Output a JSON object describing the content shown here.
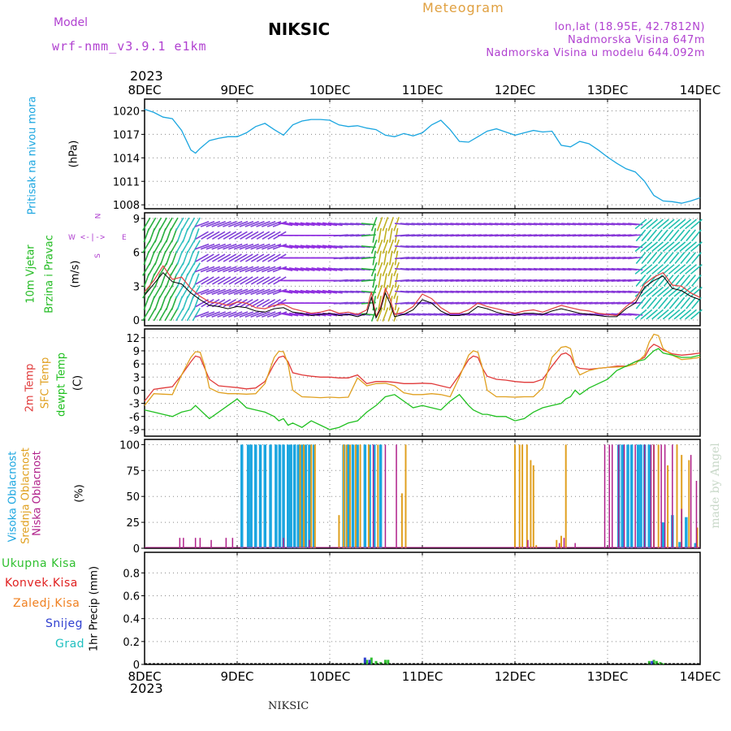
{
  "header": {
    "model_label": "Model",
    "model_name": "wrf-nmm_v3.9.1 e1km",
    "station": "NIKSIC",
    "title": "Meteogram",
    "lonlat": "lon,lat (18.95E, 42.7812N)",
    "elevation": "Nadmorska Visina 647m",
    "model_elevation": "Nadmorska Visina u modelu 644.092m",
    "year_top": "2023",
    "year_bottom": "2023",
    "footer_station": "NIKSIC",
    "watermark": "made by Angel"
  },
  "colors": {
    "pressure": "#1ba6e0",
    "wind_label": "#22bb22",
    "temp2m": "#e03a3a",
    "sfc": "#e0a020",
    "dewpt": "#20c020",
    "high_cloud": "#1ba6e0",
    "mid_cloud": "#e0a020",
    "low_cloud": "#b0208a",
    "total_precip": "#30c030",
    "convective": "#e02020",
    "frozen": "#f08020",
    "snow": "#3040d0",
    "graupel": "#20c0c0",
    "purple_text": "#b040d0",
    "orange_text": "#e0a040"
  },
  "chart_data": [
    {
      "type": "line",
      "panel": "pressure",
      "ylabel_lines": [
        "Pritisak na nivou mora",
        "(hPa)"
      ],
      "yticks": [
        1008,
        1011,
        1014,
        1017,
        1020
      ],
      "ylim": [
        1007.5,
        1021.5
      ],
      "xticks": [
        "8DEC",
        "9DEC",
        "10DEC",
        "11DEC",
        "12DEC",
        "13DEC",
        "14DEC"
      ],
      "xlim": [
        0,
        6
      ],
      "x": [
        0,
        0.1,
        0.2,
        0.3,
        0.4,
        0.5,
        0.55,
        0.6,
        0.7,
        0.8,
        0.9,
        1.0,
        1.1,
        1.2,
        1.3,
        1.4,
        1.5,
        1.6,
        1.7,
        1.8,
        1.9,
        2.0,
        2.1,
        2.2,
        2.3,
        2.4,
        2.5,
        2.6,
        2.7,
        2.8,
        2.9,
        3.0,
        3.1,
        3.2,
        3.3,
        3.4,
        3.5,
        3.6,
        3.7,
        3.8,
        3.9,
        4.0,
        4.1,
        4.2,
        4.3,
        4.4,
        4.5,
        4.6,
        4.7,
        4.8,
        4.9,
        5.0,
        5.1,
        5.2,
        5.3,
        5.4,
        5.5,
        5.6,
        5.7,
        5.8,
        5.9,
        6.0
      ],
      "series": [
        {
          "values": [
            1020.2,
            1019.8,
            1019.2,
            1019.0,
            1017.5,
            1015.0,
            1014.6,
            1015.2,
            1016.2,
            1016.5,
            1016.7,
            1016.7,
            1017.2,
            1018.0,
            1018.4,
            1017.6,
            1016.9,
            1018.2,
            1018.7,
            1018.9,
            1018.9,
            1018.8,
            1018.2,
            1018.0,
            1018.1,
            1017.8,
            1017.6,
            1016.9,
            1016.7,
            1017.1,
            1016.8,
            1017.2,
            1018.2,
            1018.8,
            1017.6,
            1016.1,
            1016.0,
            1016.7,
            1017.4,
            1017.7,
            1017.3,
            1016.9,
            1017.2,
            1017.5,
            1017.3,
            1017.4,
            1015.6,
            1015.4,
            1016.1,
            1015.8,
            1015.0,
            1014.1,
            1013.3,
            1012.6,
            1012.2,
            1011.0,
            1009.2,
            1008.5,
            1008.4,
            1008.2,
            1008.5,
            1008.9
          ]
        }
      ]
    },
    {
      "type": "line",
      "panel": "wind",
      "ylabel_lines": [
        "10m Vjetar",
        "Brzina i Pravac",
        "(m/s)"
      ],
      "compass": {
        "n": "N",
        "s": "S",
        "e": "E",
        "w": "W"
      },
      "yticks": [
        0,
        3,
        6,
        9
      ],
      "ylim": [
        -0.5,
        9.5
      ],
      "xlim": [
        0,
        6
      ],
      "x": [
        0,
        0.1,
        0.2,
        0.3,
        0.4,
        0.5,
        0.6,
        0.7,
        0.8,
        0.9,
        1.0,
        1.1,
        1.2,
        1.3,
        1.4,
        1.5,
        1.6,
        1.7,
        1.8,
        1.9,
        2.0,
        2.1,
        2.2,
        2.3,
        2.4,
        2.45,
        2.5,
        2.55,
        2.6,
        2.65,
        2.7,
        2.8,
        2.9,
        3.0,
        3.1,
        3.2,
        3.3,
        3.4,
        3.5,
        3.6,
        3.7,
        3.8,
        3.9,
        4.0,
        4.1,
        4.2,
        4.3,
        4.4,
        4.5,
        4.6,
        4.7,
        4.8,
        4.9,
        5.0,
        5.1,
        5.2,
        5.3,
        5.4,
        5.5,
        5.6,
        5.7,
        5.8,
        5.9,
        6.0
      ],
      "series": [
        {
          "values": [
            2.5,
            3.5,
            4.8,
            3.6,
            3.8,
            2.8,
            2.1,
            1.6,
            1.5,
            1.3,
            1.6,
            1.5,
            1.1,
            1.0,
            1.3,
            1.4,
            1.0,
            0.8,
            0.6,
            0.7,
            0.9,
            0.6,
            0.7,
            0.5,
            0.9,
            2.5,
            0.3,
            1.2,
            2.8,
            1.9,
            0.5,
            0.7,
            1.2,
            2.3,
            1.9,
            1.1,
            0.6,
            0.6,
            0.9,
            1.5,
            1.2,
            1.0,
            0.8,
            0.6,
            0.8,
            0.9,
            0.7,
            1.0,
            1.3,
            1.1,
            0.9,
            0.8,
            0.6,
            0.5,
            0.4,
            1.2,
            1.8,
            3.2,
            3.8,
            4.2,
            3.1,
            3.0,
            2.4,
            2.0
          ]
        },
        {
          "values": [
            2.2,
            3.2,
            4.2,
            3.4,
            3.2,
            2.4,
            1.8,
            1.3,
            1.2,
            1.0,
            1.2,
            1.1,
            0.8,
            0.7,
            1.0,
            1.1,
            0.7,
            0.6,
            0.4,
            0.5,
            0.6,
            0.4,
            0.5,
            0.3,
            0.6,
            2.0,
            0.2,
            1.0,
            2.4,
            1.5,
            0.3,
            0.5,
            0.9,
            1.8,
            1.5,
            0.8,
            0.4,
            0.4,
            0.6,
            1.2,
            1.0,
            0.7,
            0.5,
            0.4,
            0.6,
            0.6,
            0.5,
            0.8,
            1.0,
            0.8,
            0.6,
            0.5,
            0.4,
            0.3,
            0.3,
            1.0,
            1.5,
            2.9,
            3.5,
            3.9,
            2.8,
            2.6,
            2.1,
            1.8
          ]
        }
      ]
    },
    {
      "type": "line",
      "panel": "temperature",
      "ylabel_lines": [
        "2m Temp",
        "SFC Temp",
        "dewpt Temp",
        "(C)"
      ],
      "yticks": [
        -9,
        -6,
        -3,
        0,
        3,
        6,
        9,
        12
      ],
      "ylim": [
        -10.5,
        14
      ],
      "xlim": [
        0,
        6
      ],
      "x": [
        0,
        0.1,
        0.2,
        0.3,
        0.4,
        0.5,
        0.55,
        0.6,
        0.65,
        0.7,
        0.8,
        0.9,
        1.0,
        1.1,
        1.2,
        1.3,
        1.4,
        1.45,
        1.5,
        1.55,
        1.6,
        1.7,
        1.8,
        1.9,
        2.0,
        2.1,
        2.2,
        2.3,
        2.4,
        2.5,
        2.6,
        2.7,
        2.8,
        2.9,
        3.0,
        3.1,
        3.2,
        3.3,
        3.4,
        3.5,
        3.55,
        3.6,
        3.65,
        3.7,
        3.8,
        3.9,
        4.0,
        4.1,
        4.2,
        4.3,
        4.4,
        4.5,
        4.55,
        4.6,
        4.65,
        4.7,
        4.8,
        4.9,
        5.0,
        5.1,
        5.2,
        5.3,
        5.4,
        5.45,
        5.5,
        5.55,
        5.6,
        5.7,
        5.8,
        5.9,
        6.0
      ],
      "series": [
        {
          "name": "2m Temp",
          "values": [
            -2.5,
            0.2,
            0.5,
            0.8,
            3.5,
            6.5,
            7.8,
            7.5,
            5.0,
            2.5,
            1.0,
            0.8,
            0.6,
            0.3,
            0.5,
            2.0,
            6.0,
            7.5,
            7.8,
            6.5,
            4.0,
            3.5,
            3.2,
            3.0,
            3.0,
            2.8,
            2.8,
            3.5,
            1.5,
            2.0,
            2.0,
            1.8,
            1.5,
            1.5,
            1.6,
            1.5,
            1.0,
            0.5,
            3.5,
            7.0,
            7.8,
            7.5,
            5.0,
            3.2,
            2.5,
            2.3,
            2.0,
            1.8,
            1.8,
            2.5,
            5.5,
            8.2,
            8.5,
            7.8,
            5.5,
            5.0,
            4.8,
            5.0,
            5.2,
            5.5,
            5.5,
            6.5,
            7.5,
            9.5,
            10.5,
            10.0,
            9.2,
            8.3,
            8.0,
            8.2,
            8.5
          ]
        },
        {
          "name": "SFC Temp",
          "values": [
            -3.5,
            -0.8,
            -0.9,
            -1.0,
            3.5,
            7.5,
            8.8,
            8.7,
            5.5,
            0.5,
            -0.5,
            -0.8,
            -0.8,
            -0.9,
            -0.8,
            1.5,
            7.5,
            8.9,
            8.8,
            6.0,
            0.0,
            -1.5,
            -1.6,
            -1.7,
            -1.6,
            -1.7,
            -1.6,
            2.8,
            1.0,
            1.5,
            1.6,
            1.0,
            -0.6,
            -1.0,
            -1.0,
            -0.8,
            -1.0,
            -1.5,
            3.0,
            8.0,
            9.0,
            8.7,
            5.0,
            0.0,
            -1.5,
            -1.5,
            -1.6,
            -1.5,
            -1.5,
            0.5,
            7.5,
            9.8,
            10.0,
            9.5,
            5.5,
            3.5,
            4.5,
            5.0,
            5.2,
            5.3,
            5.4,
            6.0,
            8.0,
            11.0,
            12.8,
            12.5,
            9.5,
            8.0,
            7.0,
            7.2,
            7.5
          ]
        },
        {
          "name": "dewpt Temp",
          "values": [
            -4.5,
            -5.0,
            -5.5,
            -6.0,
            -5.0,
            -4.5,
            -3.5,
            -4.5,
            -5.5,
            -6.5,
            -5.0,
            -3.5,
            -2.0,
            -4.0,
            -4.5,
            -5.0,
            -6.0,
            -7.0,
            -6.5,
            -8.0,
            -7.5,
            -8.5,
            -7.0,
            -8.0,
            -9.0,
            -8.5,
            -7.5,
            -7.0,
            -5.0,
            -3.5,
            -1.5,
            -1.0,
            -2.5,
            -4.0,
            -3.5,
            -4.0,
            -4.5,
            -2.5,
            -1.0,
            -3.5,
            -4.5,
            -5.0,
            -5.5,
            -5.5,
            -6.0,
            -6.0,
            -7.0,
            -6.5,
            -5.0,
            -4.0,
            -3.5,
            -3.0,
            -2.0,
            -1.5,
            0.0,
            -1.0,
            0.5,
            1.5,
            2.5,
            4.5,
            5.5,
            6.5,
            7.0,
            8.0,
            9.0,
            9.5,
            8.5,
            8.0,
            7.5,
            7.5,
            8.0
          ]
        }
      ]
    },
    {
      "type": "bar",
      "panel": "clouds",
      "ylabel_lines": [
        "Visoka Oblacnost",
        "Srednja Oblacnost",
        "Niska Oblacnost",
        "(%)"
      ],
      "yticks": [
        0,
        25,
        50,
        75,
        100
      ],
      "ylim": [
        0,
        105
      ],
      "xlim": [
        0,
        6
      ],
      "series": [
        {
          "name": "Visoka Oblacnost",
          "x": [
            1.05,
            1.12,
            1.15,
            1.2,
            1.25,
            1.3,
            1.36,
            1.42,
            1.46,
            1.5,
            1.55,
            1.58,
            1.62,
            1.66,
            1.7,
            1.74,
            1.78,
            1.83,
            2.15,
            2.2,
            2.25,
            2.3,
            2.38,
            2.43,
            2.48,
            2.55,
            5.12,
            5.16,
            5.22,
            5.26,
            5.33,
            5.36,
            5.4,
            5.45,
            5.6,
            5.7,
            5.78,
            5.85,
            5.95
          ],
          "values": [
            100,
            100,
            100,
            100,
            100,
            100,
            100,
            100,
            100,
            100,
            100,
            100,
            100,
            100,
            100,
            100,
            100,
            100,
            100,
            100,
            100,
            100,
            100,
            100,
            100,
            100,
            100,
            100,
            100,
            100,
            100,
            100,
            100,
            100,
            25,
            32,
            6,
            30,
            5
          ]
        },
        {
          "name": "Srednja Oblacnost",
          "x": [
            1.68,
            1.72,
            1.8,
            1.84,
            2.1,
            2.15,
            2.18,
            2.22,
            2.28,
            2.33,
            2.42,
            2.52,
            2.78,
            2.82,
            4.0,
            4.05,
            4.08,
            4.13,
            4.17,
            4.2,
            4.23,
            4.45,
            4.5,
            4.55,
            5.5,
            5.55,
            5.65,
            5.75,
            5.8,
            5.88,
            5.97
          ],
          "values": [
            100,
            100,
            100,
            100,
            32,
            100,
            100,
            100,
            100,
            100,
            100,
            100,
            53,
            100,
            100,
            100,
            100,
            100,
            85,
            80,
            3,
            8,
            12,
            100,
            100,
            100,
            80,
            100,
            90,
            85,
            20
          ]
        },
        {
          "name": "Niska Oblacnost",
          "x": [
            0.38,
            0.42,
            0.55,
            0.6,
            0.72,
            0.88,
            0.95,
            1.5,
            1.78,
            2.47,
            2.6,
            2.72,
            4.14,
            4.48,
            4.53,
            4.65,
            4.97,
            5.02,
            5.05,
            5.12,
            5.18,
            5.3,
            5.4,
            5.47,
            5.5,
            5.58,
            5.62,
            5.7,
            5.8,
            5.9,
            5.96
          ],
          "values": [
            10,
            10,
            10,
            10,
            8,
            10,
            10,
            10,
            8,
            100,
            100,
            100,
            8,
            5,
            10,
            5,
            100,
            100,
            100,
            100,
            100,
            100,
            100,
            100,
            100,
            100,
            100,
            100,
            38,
            90,
            65
          ]
        }
      ]
    },
    {
      "type": "bar",
      "panel": "precipitation",
      "ylabel_lines": [
        "1hr Precip (mm)"
      ],
      "legend": [
        "Ukupna Kisa",
        "Konvek.Kisa",
        "Zaledj.Kisa",
        "Snijeg",
        "Grad"
      ],
      "yticks": [
        0,
        0.2,
        0.4,
        0.6,
        0.8
      ],
      "ylim": [
        0,
        0.98
      ],
      "xticks": [
        "8DEC",
        "9DEC",
        "10DEC",
        "11DEC",
        "12DEC",
        "13DEC",
        "14DEC"
      ],
      "xlim": [
        0,
        6
      ],
      "series": [
        {
          "name": "Ukupna Kisa",
          "x": [
            2.35,
            2.4,
            2.45,
            2.5,
            2.55,
            2.6,
            2.63,
            5.45,
            5.5,
            5.53,
            5.57,
            5.6
          ],
          "values": [
            0.01,
            0.04,
            0.06,
            0.03,
            0.02,
            0.04,
            0.04,
            0.03,
            0.04,
            0.03,
            0.02,
            0.01
          ]
        },
        {
          "name": "Snijeg",
          "x": [
            2.38,
            2.43,
            5.48
          ],
          "values": [
            0.06,
            0.04,
            0.03
          ]
        }
      ]
    }
  ]
}
